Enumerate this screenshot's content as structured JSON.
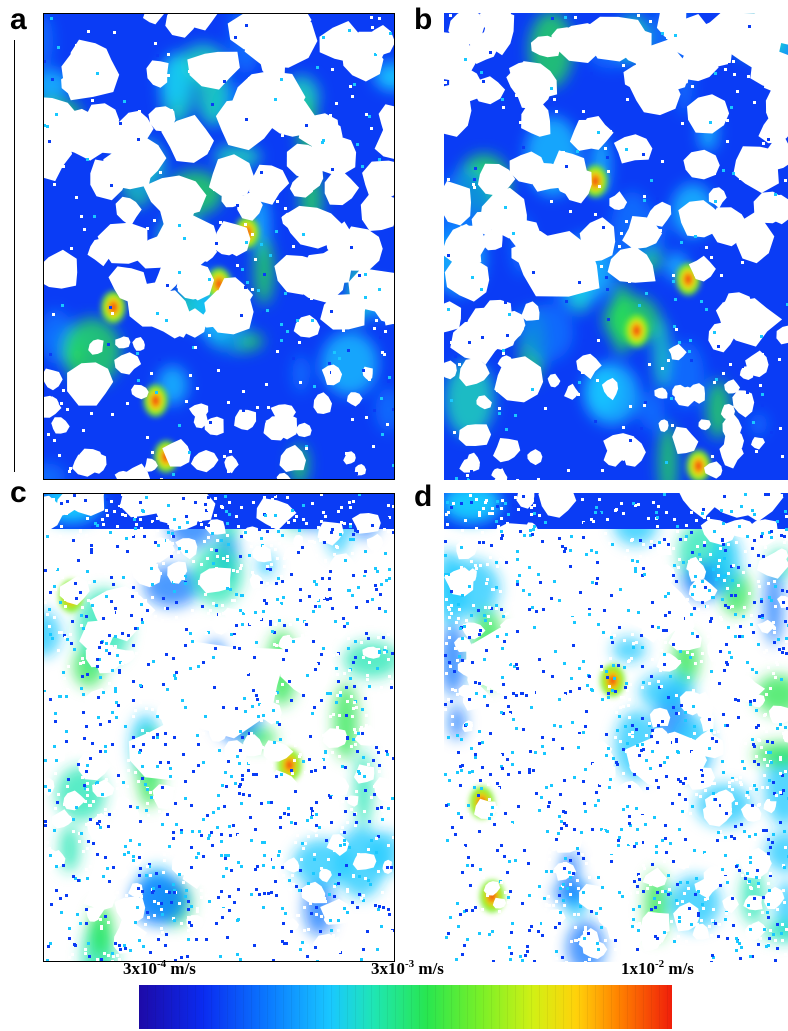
{
  "panels": [
    {
      "letter": "a",
      "palette": "blue-dominant",
      "hotspots": 6
    },
    {
      "letter": "b",
      "palette": "blue-dominant",
      "hotspots": 6
    },
    {
      "letter": "c",
      "palette": "sparse",
      "hotspots": 3
    },
    {
      "letter": "d",
      "palette": "sparse",
      "hotspots": 4
    }
  ],
  "colorbar": {
    "min_label": {
      "base": "3x10",
      "exp": "-4",
      "unit": " m/s"
    },
    "mid_label": {
      "base": "3x10",
      "exp": "-3",
      "unit": " m/s"
    },
    "max_label": {
      "base": "1x10",
      "exp": "-2",
      "unit": " m/s"
    },
    "colors": [
      "#1d0aa8",
      "#0a2bf0",
      "#0a78ff",
      "#19c8ff",
      "#1fe6b4",
      "#28e650",
      "#78f028",
      "#d2f014",
      "#ffd20a",
      "#ff8200",
      "#f01e0a"
    ]
  }
}
